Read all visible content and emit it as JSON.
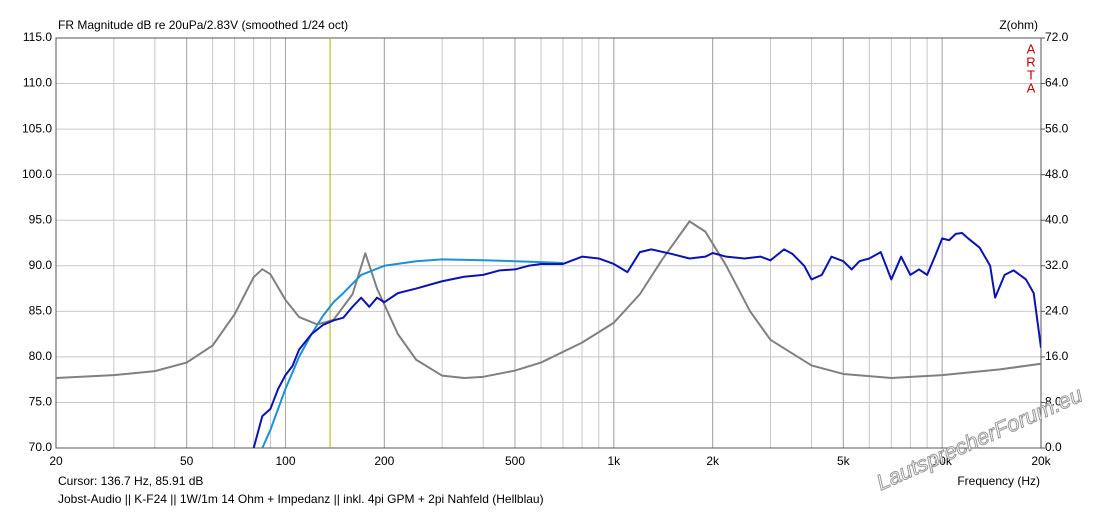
{
  "chart_data": {
    "type": "line",
    "title": "FR Magnitude dB re 20uPa/2.83V (smoothed 1/24 oct)",
    "y2_label": "Z(ohm)",
    "brand": "ARTA",
    "x_label": "Frequency (Hz)",
    "cursor": {
      "x": 136.7,
      "label": "Cursor: 136.7 Hz, 85.91 dB"
    },
    "footer": "Jobst-Audio  || K-F24  ||  1W/1m  14 Ohm + Impedanz  || inkl. 4pi GPM  +  2pi Nahfeld (Hellblau)",
    "watermark": "LautsprecherForum.eu",
    "log_x": true,
    "grid": true,
    "xlim": [
      20,
      20000
    ],
    "xticks": [
      20,
      50,
      100,
      200,
      500,
      {
        "value": 1000,
        "label": "1k"
      },
      {
        "value": 2000,
        "label": "2k"
      },
      {
        "value": 5000,
        "label": "5k"
      },
      {
        "value": 10000,
        "label": "10k"
      },
      {
        "value": 20000,
        "label": "20k"
      }
    ],
    "ylim": [
      70,
      115
    ],
    "yticks": [
      {
        "value": 70,
        "label": "70.0"
      },
      {
        "value": 75,
        "label": "75.0"
      },
      {
        "value": 80,
        "label": "80.0"
      },
      {
        "value": 85,
        "label": "85.0"
      },
      {
        "value": 90,
        "label": "90.0"
      },
      {
        "value": 95,
        "label": "95.0"
      },
      {
        "value": 100,
        "label": "100.0"
      },
      {
        "value": 105,
        "label": "105.0"
      },
      {
        "value": 110,
        "label": "110.0"
      },
      {
        "value": 115,
        "label": "115.0"
      }
    ],
    "y2lim": [
      0,
      72
    ],
    "y2ticks": [
      {
        "value": 0,
        "label": "0.0"
      },
      {
        "value": 8,
        "label": "8.0"
      },
      {
        "value": 16,
        "label": "16.0"
      },
      {
        "value": 24,
        "label": "24.0"
      },
      {
        "value": 32,
        "label": "32.0"
      },
      {
        "value": 40,
        "label": "40.0"
      },
      {
        "value": 48,
        "label": "48.0"
      },
      {
        "value": 56,
        "label": "56.0"
      },
      {
        "value": 64,
        "label": "64.0"
      },
      {
        "value": 72,
        "label": "72.0"
      }
    ],
    "series": [
      {
        "color": "#808080",
        "axis": "y2",
        "x": [
          20,
          30,
          40,
          50,
          60,
          70,
          80,
          85,
          90,
          100,
          110,
          125,
          140,
          160,
          175,
          190,
          220,
          250,
          300,
          350,
          400,
          500,
          600,
          800,
          1000,
          1200,
          1400,
          1700,
          1900,
          2200,
          2600,
          3000,
          4000,
          5000,
          7000,
          10000,
          15000,
          20000
        ],
        "values": [
          12.3,
          12.8,
          13.5,
          15,
          18,
          23.5,
          30,
          31.4,
          30.5,
          26,
          23,
          21.7,
          22.5,
          27,
          34.2,
          28,
          20,
          15.5,
          12.7,
          12.3,
          12.5,
          13.6,
          15,
          18.5,
          22,
          27,
          33,
          39.8,
          38,
          32,
          24,
          19,
          14.5,
          13,
          12.3,
          12.8,
          13.8,
          14.8
        ]
      },
      {
        "color": "#1e90d8",
        "x": [
          85,
          90,
          100,
          110,
          120,
          130,
          140,
          150,
          170,
          200,
          250,
          300,
          400,
          500,
          600,
          700
        ],
        "values": [
          70,
          72,
          76.5,
          80,
          82.5,
          84.5,
          86,
          87,
          89,
          90,
          90.5,
          90.7,
          90.6,
          90.5,
          90.4,
          90.3
        ]
      },
      {
        "color": "#0a14b4",
        "x": [
          80,
          85,
          90,
          95,
          100,
          105,
          110,
          120,
          130,
          140,
          150,
          160,
          170,
          180,
          190,
          200,
          220,
          250,
          280,
          300,
          350,
          400,
          450,
          500,
          550,
          600,
          700,
          800,
          900,
          1000,
          1100,
          1200,
          1300,
          1500,
          1700,
          1900,
          2000,
          2200,
          2500,
          2800,
          3000,
          3300,
          3500,
          3800,
          4000,
          4300,
          4600,
          5000,
          5300,
          5600,
          6000,
          6500,
          7000,
          7500,
          8000,
          8500,
          9000,
          9500,
          10000,
          10500,
          11000,
          11500,
          12000,
          13000,
          14000,
          14500,
          15500,
          16500,
          18000,
          19000,
          20000
        ],
        "values": [
          70,
          73.5,
          74.3,
          76.5,
          78,
          79,
          80.8,
          82.5,
          83.5,
          84,
          84.3,
          85.5,
          86.5,
          85.5,
          86.5,
          86,
          87,
          87.5,
          88,
          88.3,
          88.8,
          89,
          89.5,
          89.6,
          90,
          90.2,
          90.2,
          91,
          90.8,
          90.2,
          89.3,
          91.5,
          91.8,
          91.3,
          90.8,
          91,
          91.4,
          91,
          90.8,
          91,
          90.6,
          91.8,
          91.3,
          90,
          88.5,
          89,
          91,
          90.5,
          89.6,
          90.5,
          90.8,
          91.5,
          88.5,
          91,
          89,
          89.6,
          89,
          91,
          93,
          92.8,
          93.5,
          93.6,
          93,
          92,
          90,
          86.5,
          89,
          89.5,
          88.5,
          87,
          81
        ]
      }
    ]
  }
}
